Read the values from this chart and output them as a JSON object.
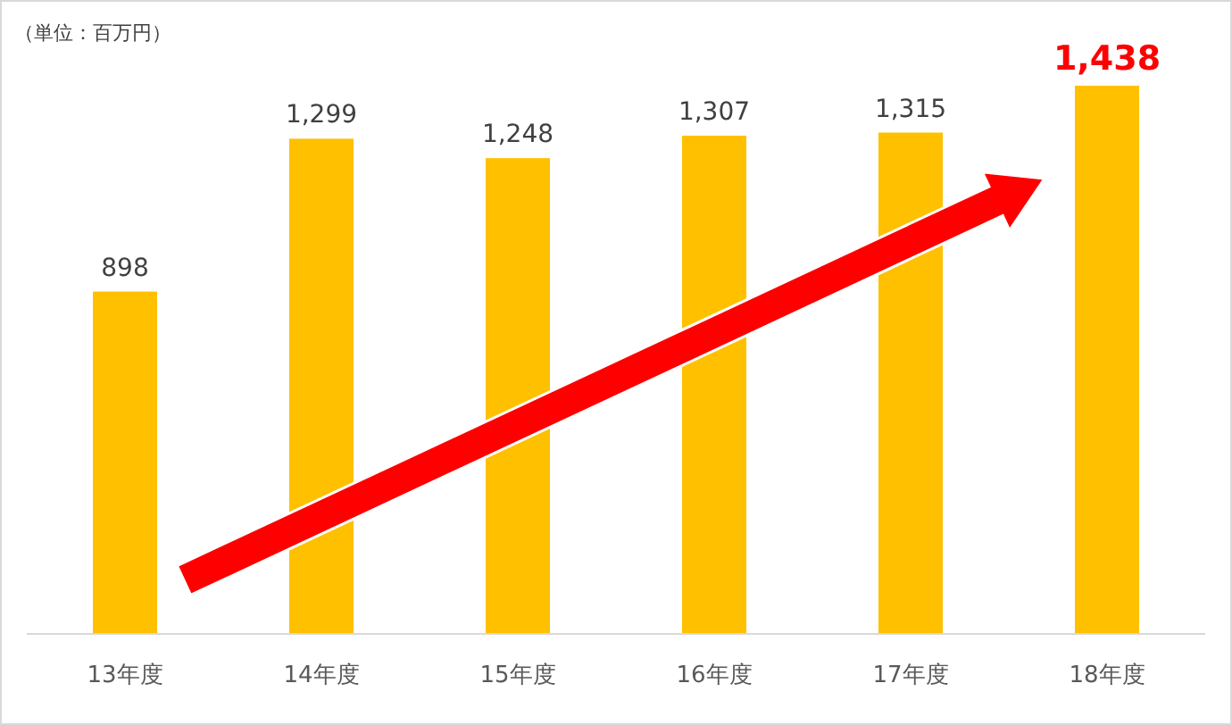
{
  "chart_data": {
    "type": "bar",
    "categories": [
      "13年度",
      "14年度",
      "15年度",
      "16年度",
      "17年度",
      "18年度"
    ],
    "values": [
      898,
      1299,
      1248,
      1307,
      1315,
      1438
    ],
    "value_labels": [
      "898",
      "1,299",
      "1,248",
      "1,307",
      "1,315",
      "1,438"
    ],
    "color": "#ffc000",
    "annotations": [
      "（単位：百万円）"
    ]
  }
}
